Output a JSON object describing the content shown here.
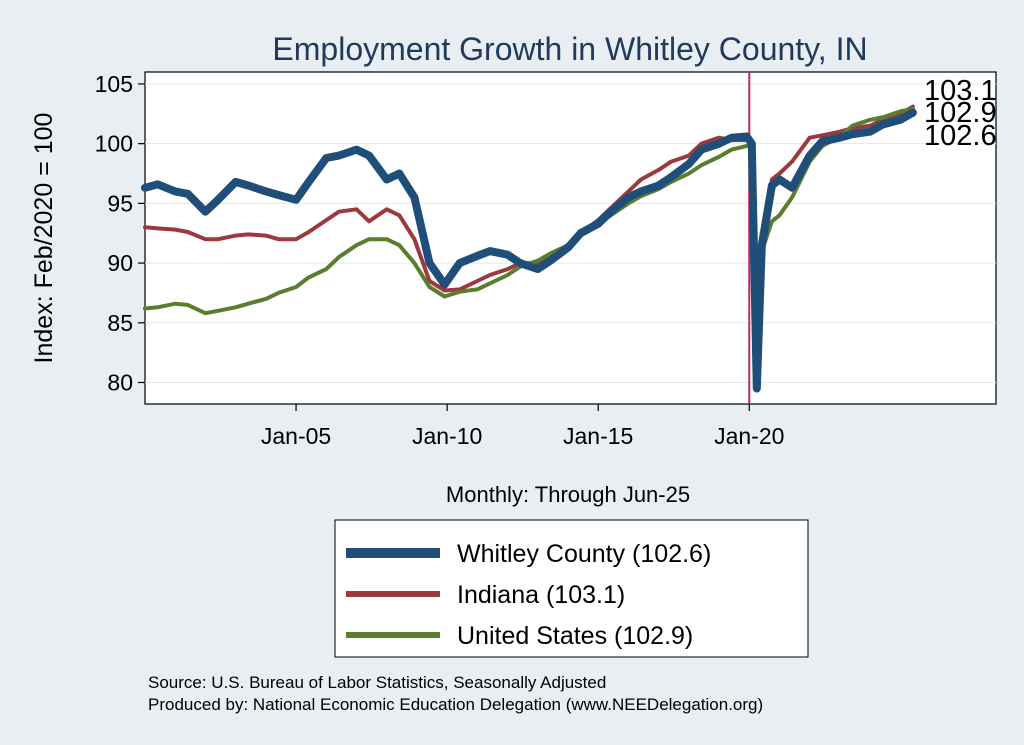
{
  "chart_data": {
    "type": "line",
    "title": "Employment Growth in Whitley  County, IN",
    "xlabel": "Monthly: Through Jun-25",
    "ylabel": "Index: Feb/2020 = 100",
    "ylim": [
      78.2,
      106
    ],
    "xlim": [
      "2000-01",
      "2028-03"
    ],
    "x_ticks": [
      "Jan-05",
      "Jan-10",
      "Jan-15",
      "Jan-20"
    ],
    "y_ticks": [
      80,
      85,
      90,
      95,
      100,
      105
    ],
    "vline": "Jan-20",
    "grid": true,
    "legend_position": "bottom",
    "end_labels": [
      "103.1",
      "102.9",
      "102.6"
    ],
    "series": [
      {
        "name": "Whitley  County (102.6)",
        "color": "#1f4e79",
        "points": [
          [
            "2000-01",
            96.3
          ],
          [
            "2000-06",
            96.6
          ],
          [
            "2001-01",
            96.0
          ],
          [
            "2001-06",
            95.8
          ],
          [
            "2002-01",
            94.3
          ],
          [
            "2002-06",
            95.3
          ],
          [
            "2003-01",
            96.8
          ],
          [
            "2003-06",
            96.5
          ],
          [
            "2004-01",
            96.0
          ],
          [
            "2004-06",
            95.7
          ],
          [
            "2005-01",
            95.3
          ],
          [
            "2005-06",
            96.8
          ],
          [
            "2006-01",
            98.8
          ],
          [
            "2006-06",
            99.0
          ],
          [
            "2007-01",
            99.5
          ],
          [
            "2007-06",
            99.0
          ],
          [
            "2008-01",
            97.0
          ],
          [
            "2008-06",
            97.5
          ],
          [
            "2008-12",
            95.5
          ],
          [
            "2009-06",
            90.0
          ],
          [
            "2009-12",
            88.2
          ],
          [
            "2010-06",
            90.0
          ],
          [
            "2011-01",
            90.6
          ],
          [
            "2011-06",
            91.0
          ],
          [
            "2012-01",
            90.7
          ],
          [
            "2012-06",
            90.0
          ],
          [
            "2013-01",
            89.5
          ],
          [
            "2013-06",
            90.2
          ],
          [
            "2014-01",
            91.3
          ],
          [
            "2014-06",
            92.5
          ],
          [
            "2015-01",
            93.3
          ],
          [
            "2015-06",
            94.3
          ],
          [
            "2016-01",
            95.5
          ],
          [
            "2016-06",
            96.0
          ],
          [
            "2017-01",
            96.5
          ],
          [
            "2017-06",
            97.2
          ],
          [
            "2018-01",
            98.3
          ],
          [
            "2018-06",
            99.5
          ],
          [
            "2019-01",
            100.0
          ],
          [
            "2019-06",
            100.5
          ],
          [
            "2019-12",
            100.6
          ],
          [
            "2020-02",
            100.0
          ],
          [
            "2020-04",
            79.5
          ],
          [
            "2020-06",
            91.5
          ],
          [
            "2020-10",
            96.5
          ],
          [
            "2021-01",
            97.0
          ],
          [
            "2021-06",
            96.3
          ],
          [
            "2022-01",
            99.0
          ],
          [
            "2022-06",
            100.2
          ],
          [
            "2023-01",
            100.5
          ],
          [
            "2023-06",
            100.8
          ],
          [
            "2024-01",
            101.0
          ],
          [
            "2024-06",
            101.6
          ],
          [
            "2025-01",
            102.0
          ],
          [
            "2025-06",
            102.6
          ]
        ]
      },
      {
        "name": "Indiana (103.1)",
        "color": "#9a3a3e",
        "points": [
          [
            "2000-01",
            93.0
          ],
          [
            "2000-06",
            92.9
          ],
          [
            "2001-01",
            92.8
          ],
          [
            "2001-06",
            92.6
          ],
          [
            "2002-01",
            92.0
          ],
          [
            "2002-06",
            92.0
          ],
          [
            "2003-01",
            92.3
          ],
          [
            "2003-06",
            92.4
          ],
          [
            "2004-01",
            92.3
          ],
          [
            "2004-06",
            92.0
          ],
          [
            "2005-01",
            92.0
          ],
          [
            "2005-06",
            92.6
          ],
          [
            "2006-01",
            93.6
          ],
          [
            "2006-06",
            94.3
          ],
          [
            "2007-01",
            94.5
          ],
          [
            "2007-06",
            93.5
          ],
          [
            "2008-01",
            94.5
          ],
          [
            "2008-06",
            94.0
          ],
          [
            "2008-12",
            92.0
          ],
          [
            "2009-06",
            88.5
          ],
          [
            "2009-12",
            87.7
          ],
          [
            "2010-06",
            87.8
          ],
          [
            "2011-01",
            88.5
          ],
          [
            "2011-06",
            89.0
          ],
          [
            "2012-01",
            89.5
          ],
          [
            "2012-06",
            90.0
          ],
          [
            "2013-01",
            90.0
          ],
          [
            "2013-06",
            90.8
          ],
          [
            "2014-01",
            91.5
          ],
          [
            "2014-06",
            92.5
          ],
          [
            "2015-01",
            93.6
          ],
          [
            "2015-06",
            94.6
          ],
          [
            "2016-01",
            96.0
          ],
          [
            "2016-06",
            97.0
          ],
          [
            "2017-01",
            97.8
          ],
          [
            "2017-06",
            98.5
          ],
          [
            "2018-01",
            99.0
          ],
          [
            "2018-06",
            100.0
          ],
          [
            "2019-01",
            100.5
          ],
          [
            "2019-06",
            100.3
          ],
          [
            "2019-12",
            100.3
          ],
          [
            "2020-02",
            100.0
          ],
          [
            "2020-04",
            82.0
          ],
          [
            "2020-06",
            92.0
          ],
          [
            "2020-10",
            97.0
          ],
          [
            "2021-01",
            97.5
          ],
          [
            "2021-06",
            98.5
          ],
          [
            "2022-01",
            100.5
          ],
          [
            "2022-06",
            100.7
          ],
          [
            "2023-01",
            101.0
          ],
          [
            "2023-06",
            101.3
          ],
          [
            "2024-01",
            101.5
          ],
          [
            "2024-06",
            102.0
          ],
          [
            "2025-01",
            102.5
          ],
          [
            "2025-06",
            103.1
          ]
        ]
      },
      {
        "name": "United States (102.9)",
        "color": "#5a7d2e",
        "points": [
          [
            "2000-01",
            86.2
          ],
          [
            "2000-06",
            86.3
          ],
          [
            "2001-01",
            86.6
          ],
          [
            "2001-06",
            86.5
          ],
          [
            "2002-01",
            85.8
          ],
          [
            "2002-06",
            86.0
          ],
          [
            "2003-01",
            86.3
          ],
          [
            "2003-06",
            86.6
          ],
          [
            "2004-01",
            87.0
          ],
          [
            "2004-06",
            87.5
          ],
          [
            "2005-01",
            88.0
          ],
          [
            "2005-06",
            88.8
          ],
          [
            "2006-01",
            89.5
          ],
          [
            "2006-06",
            90.5
          ],
          [
            "2007-01",
            91.5
          ],
          [
            "2007-06",
            92.0
          ],
          [
            "2008-01",
            92.0
          ],
          [
            "2008-06",
            91.5
          ],
          [
            "2008-12",
            90.0
          ],
          [
            "2009-06",
            88.0
          ],
          [
            "2009-12",
            87.2
          ],
          [
            "2010-06",
            87.6
          ],
          [
            "2011-01",
            87.8
          ],
          [
            "2011-06",
            88.3
          ],
          [
            "2012-01",
            89.0
          ],
          [
            "2012-06",
            89.7
          ],
          [
            "2013-01",
            90.2
          ],
          [
            "2013-06",
            90.8
          ],
          [
            "2014-01",
            91.5
          ],
          [
            "2014-06",
            92.3
          ],
          [
            "2015-01",
            93.3
          ],
          [
            "2015-06",
            94.0
          ],
          [
            "2016-01",
            95.0
          ],
          [
            "2016-06",
            95.6
          ],
          [
            "2017-01",
            96.2
          ],
          [
            "2017-06",
            96.8
          ],
          [
            "2018-01",
            97.5
          ],
          [
            "2018-06",
            98.2
          ],
          [
            "2019-01",
            98.9
          ],
          [
            "2019-06",
            99.5
          ],
          [
            "2019-12",
            99.8
          ],
          [
            "2020-02",
            100.0
          ],
          [
            "2020-04",
            86.0
          ],
          [
            "2020-06",
            91.0
          ],
          [
            "2020-10",
            93.5
          ],
          [
            "2021-01",
            94.0
          ],
          [
            "2021-06",
            95.5
          ],
          [
            "2022-01",
            98.5
          ],
          [
            "2022-06",
            99.8
          ],
          [
            "2023-01",
            100.6
          ],
          [
            "2023-06",
            101.5
          ],
          [
            "2024-01",
            102.0
          ],
          [
            "2024-06",
            102.2
          ],
          [
            "2025-01",
            102.7
          ],
          [
            "2025-06",
            102.9
          ]
        ]
      }
    ]
  },
  "footer": {
    "source": "Source: U.S. Bureau of Labor Statistics, Seasonally Adjusted",
    "produced": "Produced by: National Economic Education Delegation (www.NEEDelegation.org)"
  }
}
